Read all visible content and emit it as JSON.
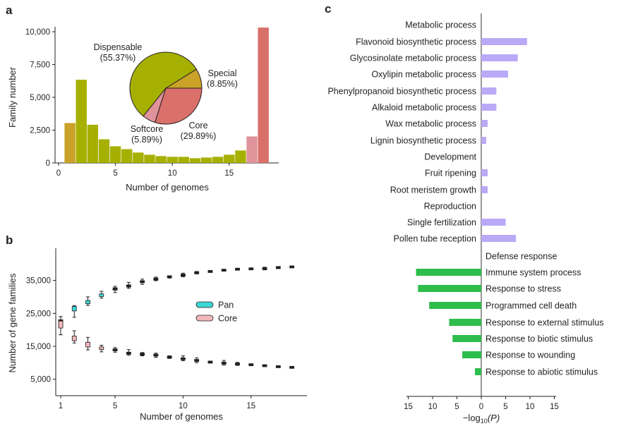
{
  "panel_labels": [
    "a",
    "b",
    "c"
  ],
  "chart_data": [
    {
      "panel": "a",
      "type": "bar",
      "xlabel": "Number of genomes",
      "ylabel": "Family number",
      "xlim": [
        0,
        19
      ],
      "ylim": [
        0,
        10500
      ],
      "xticks": [
        0,
        5,
        10,
        15
      ],
      "yticks": [
        0,
        2500,
        5000,
        7500,
        10000
      ],
      "ytick_labels": [
        "0",
        "2,500",
        "5,000",
        "7,500",
        "10,000"
      ],
      "grid": false,
      "categories": [
        1,
        2,
        3,
        4,
        5,
        6,
        7,
        8,
        9,
        10,
        11,
        12,
        13,
        14,
        15,
        16,
        17,
        18
      ],
      "values": [
        3040,
        6340,
        2910,
        1800,
        1270,
        1050,
        790,
        625,
        520,
        465,
        465,
        360,
        410,
        465,
        625,
        950,
        2020,
        10320
      ],
      "bar_groups": [
        "Special",
        "Dispensable",
        "Dispensable",
        "Dispensable",
        "Dispensable",
        "Dispensable",
        "Dispensable",
        "Dispensable",
        "Dispensable",
        "Dispensable",
        "Dispensable",
        "Dispensable",
        "Dispensable",
        "Dispensable",
        "Dispensable",
        "Dispensable",
        "Softcore",
        "Core"
      ],
      "colors": {
        "Special": "#c9a227",
        "Dispensable": "#a6b000",
        "Softcore": "#e0939b",
        "Core": "#d9706a"
      },
      "inset_pie": {
        "type": "pie",
        "slices": [
          {
            "name": "Special",
            "value": 8.85,
            "label": "(8.85%)"
          },
          {
            "name": "Dispensable",
            "value": 55.37,
            "label": "(55.37%)"
          },
          {
            "name": "Softcore",
            "value": 5.89,
            "label": "(5.89%)"
          },
          {
            "name": "Core",
            "value": 29.89,
            "label": "(29.89%)"
          }
        ]
      }
    },
    {
      "panel": "b",
      "type": "box",
      "xlabel": "Number of genomes",
      "ylabel": "Number of gene families",
      "xlim": [
        0.5,
        19
      ],
      "ylim": [
        0,
        45000
      ],
      "xticks": [
        1,
        5,
        10,
        15
      ],
      "yticks": [
        5000,
        15000,
        25000,
        35000
      ],
      "ytick_labels": [
        "5,000",
        "15,000",
        "25,000",
        "35,000"
      ],
      "legend": {
        "placement": "center-right",
        "entries": [
          {
            "name": "Pan",
            "color": "#3ed6d6"
          },
          {
            "name": "Core",
            "color": "#f2b8bb"
          }
        ]
      },
      "x": [
        1,
        2,
        3,
        4,
        5,
        6,
        7,
        8,
        9,
        10,
        11,
        12,
        13,
        14,
        15,
        16,
        17,
        18
      ],
      "series": [
        {
          "name": "Pan",
          "color": "#3ed6d6",
          "median": [
            22000,
            26400,
            28400,
            30500,
            32400,
            33300,
            34600,
            35400,
            36100,
            36600,
            37300,
            37700,
            38100,
            38400,
            38500,
            38600,
            38900,
            39100
          ],
          "low": [
            18500,
            23800,
            27400,
            29600,
            31300,
            32600,
            33800,
            34900,
            35700,
            36100,
            37000,
            37500,
            38000,
            38200,
            38300,
            38200,
            38600,
            39100
          ],
          "high": [
            24000,
            27300,
            30000,
            31700,
            33200,
            34400,
            35400,
            36000,
            36400,
            37200,
            37700,
            38000,
            38300,
            38600,
            38700,
            39000,
            39200,
            39100
          ]
        },
        {
          "name": "Core",
          "color": "#f2b8bb",
          "median": [
            21600,
            17400,
            15500,
            14400,
            13900,
            12900,
            12600,
            12300,
            11700,
            11200,
            10700,
            10200,
            9900,
            9600,
            9400,
            9100,
            8800,
            8600
          ],
          "low": [
            18500,
            16000,
            13900,
            13300,
            13200,
            12300,
            12100,
            11600,
            11300,
            10600,
            10000,
            9900,
            9300,
            9200,
            9200,
            8900,
            8700,
            8600
          ],
          "high": [
            24000,
            19700,
            17700,
            15300,
            14600,
            14000,
            13100,
            12900,
            12100,
            12100,
            11500,
            10500,
            10700,
            10100,
            9600,
            9300,
            8900,
            8600
          ]
        }
      ]
    },
    {
      "panel": "c",
      "type": "bar",
      "orientation": "horizontal",
      "xlabel_prefix": "−log",
      "xlabel_sub": "10",
      "xlabel_suffix": "(P)",
      "xlim": [
        -15,
        15
      ],
      "xticks": [
        -15,
        -10,
        -5,
        0,
        5,
        10,
        15
      ],
      "xtick_labels": [
        "15",
        "10",
        "5",
        "0",
        "5",
        "10",
        "15"
      ],
      "colors": {
        "positive": "#b9a9f7",
        "negative": "#2dbd4a"
      },
      "categories": [
        {
          "label": "Metabolic process",
          "value": null,
          "side": "left"
        },
        {
          "label": "Flavonoid biosynthetic process",
          "value": 9.4,
          "side": "left"
        },
        {
          "label": "Glycosinolate metabolic process",
          "value": 7.5,
          "side": "left"
        },
        {
          "label": "Oxylipin metabolic process",
          "value": 5.5,
          "side": "left"
        },
        {
          "label": "Phenylpropanoid biosynthetic process",
          "value": 3.1,
          "side": "left"
        },
        {
          "label": "Alkaloid metabolic process",
          "value": 3.1,
          "side": "left"
        },
        {
          "label": "Wax metabolic process",
          "value": 1.3,
          "side": "left"
        },
        {
          "label": "Lignin biosynthetic process",
          "value": 1.0,
          "side": "left"
        },
        {
          "label": "Development",
          "value": null,
          "side": "left"
        },
        {
          "label": "Fruit ripening",
          "value": 1.3,
          "side": "left"
        },
        {
          "label": "Root meristem growth",
          "value": 1.3,
          "side": "left"
        },
        {
          "label": "Reproduction",
          "value": null,
          "side": "left"
        },
        {
          "label": "Single fertilization",
          "value": 5.0,
          "side": "left"
        },
        {
          "label": "Pollen tube reception",
          "value": 7.1,
          "side": "left"
        },
        {
          "label": "Defense response",
          "value": null,
          "side": "right"
        },
        {
          "label": "Immune system process",
          "value": -13.4,
          "side": "right"
        },
        {
          "label": "Response to stress",
          "value": -13.0,
          "side": "right"
        },
        {
          "label": "Programmed cell death",
          "value": -10.7,
          "side": "right"
        },
        {
          "label": "Response to external stimulus",
          "value": -6.6,
          "side": "right"
        },
        {
          "label": "Response to biotic stimulus",
          "value": -5.9,
          "side": "right"
        },
        {
          "label": "Response to wounding",
          "value": -3.9,
          "side": "right"
        },
        {
          "label": "Response to abiotic stimulus",
          "value": -1.3,
          "side": "right"
        }
      ]
    }
  ]
}
